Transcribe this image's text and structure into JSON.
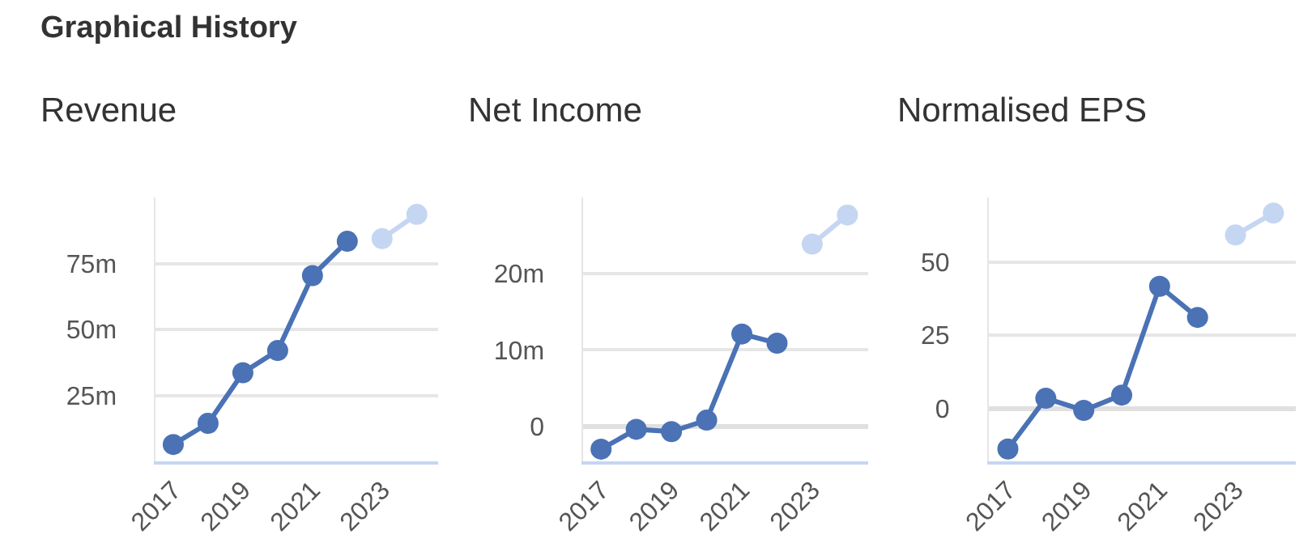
{
  "chart_data": [
    {
      "type": "line",
      "title": "Revenue",
      "annotations": [
        "Graphical History"
      ],
      "xlim": [
        2016.5,
        2024.6
      ],
      "xticks": [
        2017,
        2019,
        2021,
        2023
      ],
      "ylim": [
        0,
        100
      ],
      "yticks": [
        {
          "value": 25,
          "label": "25m"
        },
        {
          "value": 50,
          "label": "50m"
        },
        {
          "value": 75,
          "label": "75m"
        }
      ],
      "grid": "y",
      "marker": "circle",
      "line_style": "solid",
      "series": [
        {
          "color": "#4a72b5",
          "x": [
            2017,
            2018,
            2019,
            2020,
            2021,
            2022
          ],
          "values": [
            6.4,
            14.4,
            33.6,
            42,
            70.4,
            83.4
          ]
        },
        {
          "color": "#c5d6f2",
          "x": [
            2023,
            2024
          ],
          "values": [
            84.4,
            93.6
          ]
        }
      ]
    },
    {
      "type": "line",
      "title": "Net Income",
      "xlim": [
        2016.5,
        2024.6
      ],
      "xticks": [
        2017,
        2019,
        2021,
        2023
      ],
      "ylim": [
        -4.6,
        30
      ],
      "yticks": [
        0,
        {
          "value": 10,
          "label": "10m"
        },
        {
          "value": 20,
          "label": "20m"
        }
      ],
      "grid": "y",
      "marker": "circle",
      "line_style": "solid",
      "series": [
        {
          "color": "#4a72b5",
          "x": [
            2017,
            2018,
            2019,
            2020,
            2021,
            2022
          ],
          "values": [
            -3.0,
            -0.4,
            -0.7,
            0.8,
            12.1,
            10.9
          ]
        },
        {
          "color": "#c5d6f2",
          "x": [
            2023,
            2024
          ],
          "values": [
            23.9,
            27.7
          ]
        }
      ]
    },
    {
      "type": "line",
      "title": "Normalised EPS",
      "xlim": [
        2016.5,
        2024.6
      ],
      "xticks": [
        2017,
        2019,
        2021,
        2023
      ],
      "ylim": [
        -18,
        72
      ],
      "yticks": [
        0,
        25,
        50
      ],
      "grid": "y",
      "marker": "circle",
      "line_style": "solid",
      "series": [
        {
          "color": "#4a72b5",
          "x": [
            2017,
            2018,
            2019,
            2020,
            2021,
            2022
          ],
          "values": [
            -13.8,
            3.5,
            -0.6,
            4.6,
            41.7,
            31.1
          ]
        },
        {
          "color": "#c5d6f2",
          "x": [
            2023,
            2024
          ],
          "values": [
            59.2,
            66.7
          ]
        }
      ]
    }
  ]
}
